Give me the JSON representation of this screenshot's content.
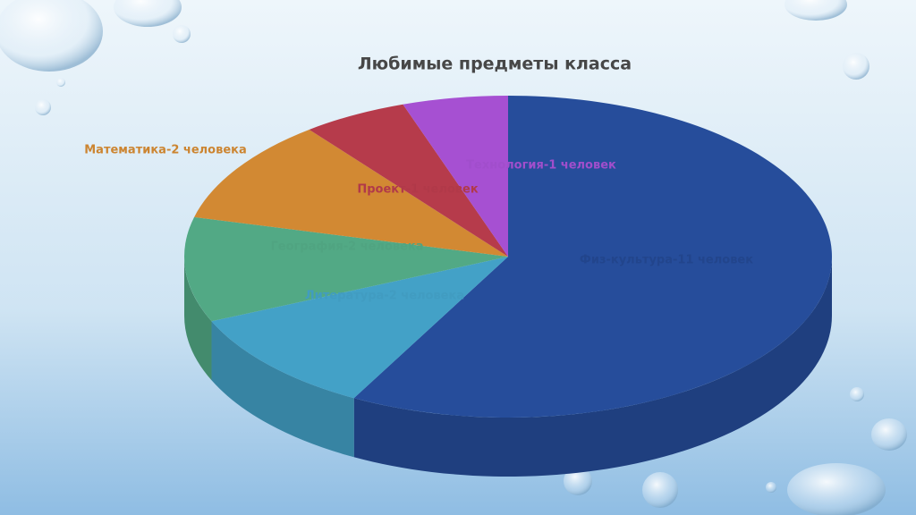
{
  "chart_data": {
    "type": "pie",
    "title": "Любимые предметы класса",
    "categories": [
      "Физ-культура-11 человек",
      "Литература-2 человека",
      "География-2 человека",
      "Математика-2 человека",
      "Проект-1 человек",
      "Технология-1 человек"
    ],
    "values": [
      11,
      2,
      2,
      2,
      1,
      1
    ],
    "colors": [
      "#264d9b",
      "#43a1c7",
      "#52a985",
      "#d28933",
      "#b63b4b",
      "#a650d2"
    ]
  }
}
